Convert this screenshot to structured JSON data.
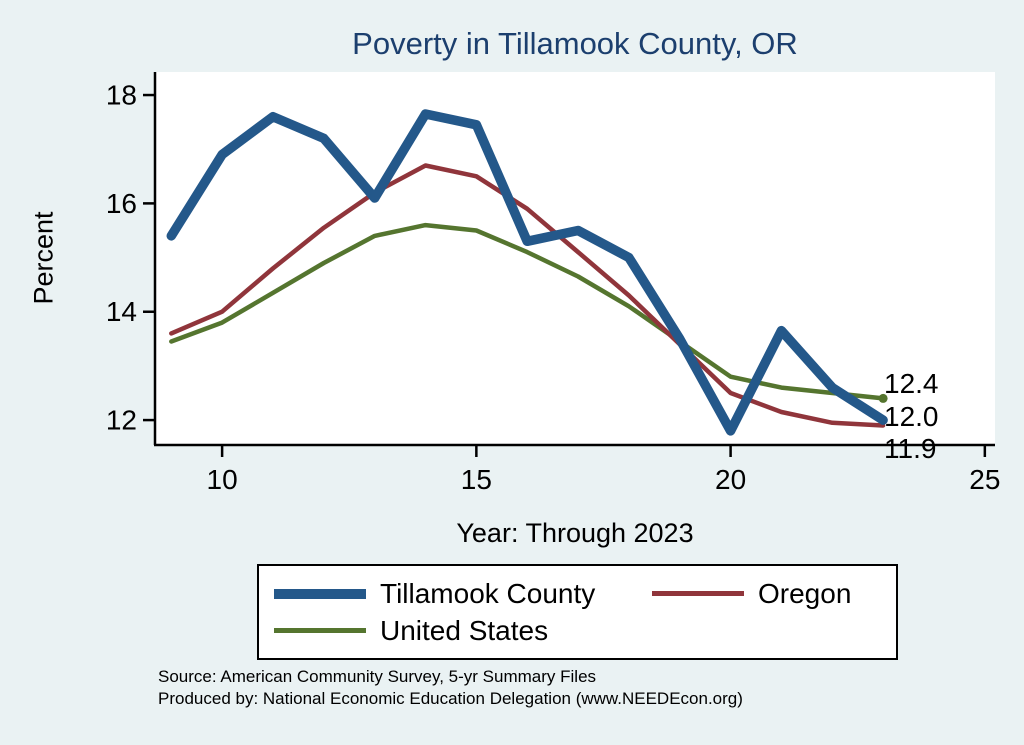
{
  "title": "Poverty in Tillamook County, OR",
  "axes": {
    "ylabel": "Percent",
    "xlabel": "Year: Through 2023"
  },
  "annotations": {
    "us_end": "12.4",
    "tillamook_end": "12.0",
    "oregon_end": "11.9"
  },
  "legend": {
    "items": [
      {
        "label": "Tillamook County",
        "color": "#24588a",
        "thick": true
      },
      {
        "label": "Oregon",
        "color": "#90353b",
        "thick": false
      },
      {
        "label": "United States",
        "color": "#55752f",
        "thick": false
      }
    ]
  },
  "source": {
    "line1": "Source: American Community Survey, 5-yr Summary Files",
    "line2": "Produced by: National Economic Education Delegation (www.NEEDEcon.org)"
  },
  "colors": {
    "background": "#eaf2f3",
    "plot_bg": "#ffffff",
    "title": "#1c3f6e",
    "axis": "#000000",
    "tillamook": "#24588a",
    "oregon": "#90353b",
    "us": "#55752f"
  },
  "chart_data": {
    "type": "line",
    "title": "Poverty in Tillamook County, OR",
    "xlabel": "Year: Through 2023",
    "ylabel": "Percent",
    "x": [
      9,
      10,
      11,
      12,
      13,
      14,
      15,
      16,
      17,
      18,
      19,
      20,
      21,
      22,
      23
    ],
    "series": [
      {
        "name": "Tillamook County",
        "color": "#24588a",
        "line_width": 9.5,
        "values": [
          15.4,
          16.9,
          17.6,
          17.2,
          16.1,
          17.65,
          17.45,
          15.3,
          15.5,
          15.0,
          13.5,
          11.8,
          13.65,
          12.6,
          12.0
        ]
      },
      {
        "name": "Oregon",
        "color": "#90353b",
        "line_width": 4.5,
        "values": [
          13.6,
          14.0,
          14.8,
          15.55,
          16.2,
          16.7,
          16.5,
          15.9,
          15.1,
          14.3,
          13.4,
          12.5,
          12.15,
          11.95,
          11.9
        ]
      },
      {
        "name": "United States",
        "color": "#55752f",
        "line_width": 4.5,
        "values": [
          13.45,
          13.8,
          14.35,
          14.9,
          15.4,
          15.6,
          15.5,
          15.1,
          14.65,
          14.1,
          13.45,
          12.8,
          12.6,
          12.5,
          12.4
        ]
      }
    ],
    "xticks": [
      10,
      15,
      20,
      25
    ],
    "yticks": [
      12,
      14,
      16,
      18
    ],
    "xlim": [
      8.68,
      25.2
    ],
    "ylim": [
      11.54,
      18.37
    ],
    "grid": false,
    "legend_position": "bottom",
    "end_labels": [
      {
        "series": "United States",
        "text": "12.4"
      },
      {
        "series": "Tillamook County",
        "text": "12.0"
      },
      {
        "series": "Oregon",
        "text": "11.9"
      }
    ]
  }
}
